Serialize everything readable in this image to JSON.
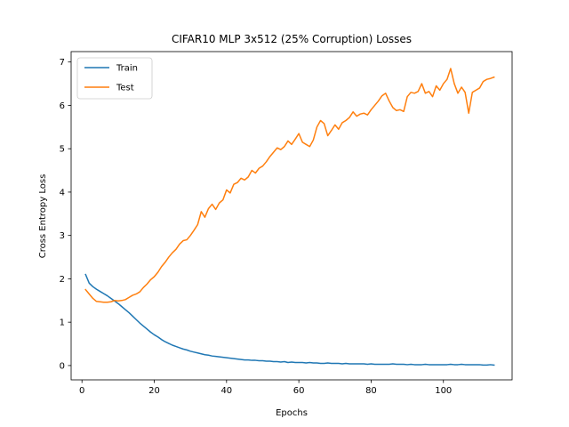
{
  "chart_data": {
    "type": "line",
    "title": "CIFAR10 MLP 3x512 (25% Corruption) Losses",
    "xlabel": "Epochs",
    "ylabel": "Cross Entropy Loss",
    "xlim": [
      -3,
      119
    ],
    "ylim": [
      -0.33,
      7.24
    ],
    "xticks": [
      0,
      20,
      40,
      60,
      80,
      100
    ],
    "yticks": [
      0,
      1,
      2,
      3,
      4,
      5,
      6,
      7
    ],
    "grid": false,
    "legend_position": "top-left",
    "x": [
      1,
      2,
      3,
      4,
      5,
      6,
      7,
      8,
      9,
      10,
      11,
      12,
      13,
      14,
      15,
      16,
      17,
      18,
      19,
      20,
      21,
      22,
      23,
      24,
      25,
      26,
      27,
      28,
      29,
      30,
      31,
      32,
      33,
      34,
      35,
      36,
      37,
      38,
      39,
      40,
      41,
      42,
      43,
      44,
      45,
      46,
      47,
      48,
      49,
      50,
      51,
      52,
      53,
      54,
      55,
      56,
      57,
      58,
      59,
      60,
      61,
      62,
      63,
      64,
      65,
      66,
      67,
      68,
      69,
      70,
      71,
      72,
      73,
      74,
      75,
      76,
      77,
      78,
      79,
      80,
      81,
      82,
      83,
      84,
      85,
      86,
      87,
      88,
      89,
      90,
      91,
      92,
      93,
      94,
      95,
      96,
      97,
      98,
      99,
      100,
      101,
      102,
      103,
      104,
      105,
      106,
      107,
      108,
      109,
      110,
      111,
      112,
      113,
      114
    ],
    "series": [
      {
        "name": "Train",
        "color": "#1f77b4",
        "values": [
          2.1,
          1.9,
          1.82,
          1.76,
          1.71,
          1.66,
          1.61,
          1.55,
          1.49,
          1.43,
          1.36,
          1.29,
          1.22,
          1.14,
          1.06,
          0.98,
          0.91,
          0.84,
          0.77,
          0.71,
          0.66,
          0.6,
          0.55,
          0.51,
          0.47,
          0.44,
          0.41,
          0.38,
          0.36,
          0.33,
          0.31,
          0.29,
          0.27,
          0.25,
          0.24,
          0.22,
          0.21,
          0.2,
          0.19,
          0.18,
          0.17,
          0.16,
          0.15,
          0.14,
          0.13,
          0.13,
          0.12,
          0.12,
          0.11,
          0.11,
          0.1,
          0.1,
          0.09,
          0.09,
          0.08,
          0.09,
          0.07,
          0.08,
          0.07,
          0.07,
          0.07,
          0.06,
          0.07,
          0.06,
          0.06,
          0.05,
          0.05,
          0.06,
          0.05,
          0.05,
          0.05,
          0.04,
          0.05,
          0.04,
          0.04,
          0.04,
          0.04,
          0.04,
          0.03,
          0.04,
          0.03,
          0.03,
          0.03,
          0.03,
          0.03,
          0.04,
          0.03,
          0.03,
          0.03,
          0.02,
          0.03,
          0.02,
          0.02,
          0.02,
          0.03,
          0.02,
          0.02,
          0.02,
          0.02,
          0.02,
          0.02,
          0.03,
          0.02,
          0.02,
          0.03,
          0.02,
          0.02,
          0.02,
          0.02,
          0.02,
          0.01,
          0.01,
          0.02,
          0.01
        ]
      },
      {
        "name": "Test",
        "color": "#ff7f0e",
        "values": [
          1.75,
          1.65,
          1.55,
          1.48,
          1.47,
          1.46,
          1.46,
          1.47,
          1.5,
          1.49,
          1.5,
          1.52,
          1.57,
          1.62,
          1.65,
          1.7,
          1.8,
          1.88,
          1.98,
          2.05,
          2.15,
          2.28,
          2.38,
          2.5,
          2.6,
          2.68,
          2.8,
          2.88,
          2.9,
          3.0,
          3.12,
          3.25,
          3.55,
          3.42,
          3.62,
          3.72,
          3.6,
          3.75,
          3.82,
          4.05,
          3.98,
          4.18,
          4.22,
          4.32,
          4.28,
          4.35,
          4.5,
          4.44,
          4.55,
          4.6,
          4.7,
          4.82,
          4.92,
          5.02,
          4.98,
          5.05,
          5.18,
          5.1,
          5.22,
          5.35,
          5.15,
          5.1,
          5.05,
          5.2,
          5.5,
          5.65,
          5.58,
          5.3,
          5.42,
          5.55,
          5.45,
          5.6,
          5.65,
          5.72,
          5.85,
          5.75,
          5.8,
          5.82,
          5.78,
          5.9,
          6.0,
          6.1,
          6.22,
          6.28,
          6.1,
          5.95,
          5.88,
          5.9,
          5.86,
          6.2,
          6.3,
          6.28,
          6.32,
          6.5,
          6.28,
          6.32,
          6.2,
          6.45,
          6.35,
          6.5,
          6.6,
          6.85,
          6.5,
          6.28,
          6.42,
          6.3,
          5.82,
          6.3,
          6.35,
          6.4,
          6.55,
          6.6,
          6.62,
          6.65
        ]
      }
    ]
  }
}
